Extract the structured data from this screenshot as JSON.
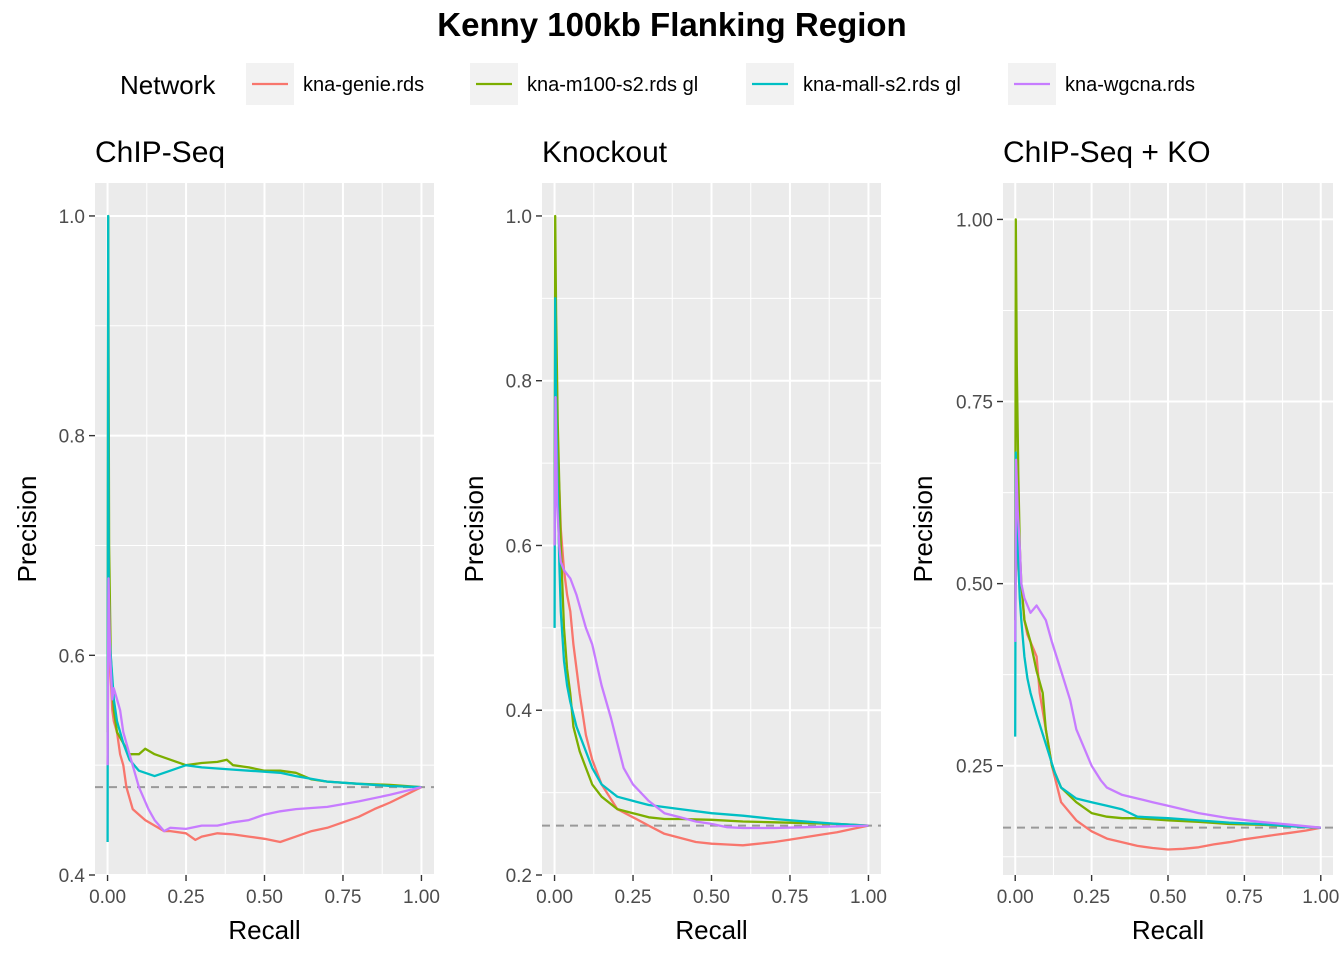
{
  "title": "Kenny 100kb Flanking Region",
  "legend": {
    "title": "Network",
    "position": "top",
    "entries": [
      {
        "label": "kna-genie.rds",
        "color": "#F8766D"
      },
      {
        "label": "kna-m100-s2.rds gl",
        "color": "#7CAE00"
      },
      {
        "label": "kna-mall-s2.rds gl",
        "color": "#00BFC4"
      },
      {
        "label": "kna-wgcna.rds",
        "color": "#C77CFF"
      }
    ]
  },
  "colors": {
    "panel_bg": "#EBEBEB",
    "grid": "#FFFFFF",
    "baseline": "#999999"
  },
  "chart_data": [
    {
      "type": "line",
      "title": "ChIP-Seq",
      "xlabel": "Recall",
      "ylabel": "Precision",
      "xlim": [
        -0.04,
        1.04
      ],
      "ylim": [
        0.4,
        1.03
      ],
      "xticks": [
        0,
        0.25,
        0.5,
        0.75,
        1
      ],
      "xtick_labels": [
        "0.00",
        "0.25",
        "0.50",
        "0.75",
        "1.00"
      ],
      "yticks": [
        0.4,
        0.6,
        0.8,
        1.0
      ],
      "ytick_labels": [
        "0.4",
        "0.6",
        "0.8",
        "1.0"
      ],
      "grid": true,
      "baseline": 0.48,
      "series": [
        {
          "name": "kna-genie.rds",
          "x": [
            0,
            0.003,
            0.006,
            0.01,
            0.015,
            0.02,
            0.03,
            0.04,
            0.05,
            0.06,
            0.08,
            0.1,
            0.12,
            0.15,
            0.18,
            0.2,
            0.25,
            0.28,
            0.3,
            0.35,
            0.4,
            0.45,
            0.5,
            0.55,
            0.6,
            0.65,
            0.7,
            0.75,
            0.8,
            0.85,
            0.9,
            0.95,
            1.0
          ],
          "y": [
            0.5,
            0.66,
            0.6,
            0.58,
            0.55,
            0.54,
            0.53,
            0.51,
            0.5,
            0.48,
            0.46,
            0.455,
            0.45,
            0.445,
            0.44,
            0.44,
            0.438,
            0.432,
            0.435,
            0.438,
            0.437,
            0.435,
            0.433,
            0.43,
            0.435,
            0.44,
            0.443,
            0.448,
            0.453,
            0.46,
            0.466,
            0.473,
            0.48
          ]
        },
        {
          "name": "kna-m100-s2.rds gl",
          "x": [
            0,
            0.002,
            0.005,
            0.01,
            0.02,
            0.03,
            0.05,
            0.07,
            0.1,
            0.12,
            0.15,
            0.2,
            0.25,
            0.3,
            0.35,
            0.38,
            0.4,
            0.45,
            0.5,
            0.55,
            0.6,
            0.65,
            0.7,
            0.8,
            0.9,
            1.0
          ],
          "y": [
            0.53,
            1.0,
            0.7,
            0.6,
            0.55,
            0.53,
            0.52,
            0.51,
            0.51,
            0.515,
            0.51,
            0.505,
            0.5,
            0.502,
            0.503,
            0.505,
            0.5,
            0.498,
            0.495,
            0.495,
            0.493,
            0.487,
            0.485,
            0.483,
            0.482,
            0.48
          ]
        },
        {
          "name": "kna-mall-s2.rds gl",
          "x": [
            0,
            0.002,
            0.003,
            0.004,
            0.006,
            0.01,
            0.015,
            0.02,
            0.03,
            0.05,
            0.07,
            0.1,
            0.15,
            0.2,
            0.25,
            0.3,
            0.35,
            0.4,
            0.45,
            0.5,
            0.55,
            0.6,
            0.7,
            0.8,
            0.9,
            1.0
          ],
          "y": [
            0.43,
            1.0,
            0.75,
            0.65,
            0.62,
            0.6,
            0.58,
            0.56,
            0.54,
            0.52,
            0.505,
            0.495,
            0.49,
            0.495,
            0.5,
            0.498,
            0.497,
            0.496,
            0.495,
            0.494,
            0.493,
            0.49,
            0.485,
            0.483,
            0.481,
            0.48
          ]
        },
        {
          "name": "kna-wgcna.rds",
          "x": [
            0,
            0.003,
            0.008,
            0.015,
            0.02,
            0.03,
            0.04,
            0.05,
            0.07,
            0.1,
            0.13,
            0.15,
            0.18,
            0.2,
            0.25,
            0.3,
            0.35,
            0.4,
            0.45,
            0.5,
            0.55,
            0.6,
            0.7,
            0.8,
            0.9,
            1.0
          ],
          "y": [
            0.5,
            0.67,
            0.6,
            0.56,
            0.57,
            0.56,
            0.55,
            0.53,
            0.51,
            0.48,
            0.46,
            0.45,
            0.44,
            0.443,
            0.442,
            0.445,
            0.445,
            0.448,
            0.45,
            0.455,
            0.458,
            0.46,
            0.462,
            0.467,
            0.473,
            0.48
          ]
        }
      ]
    },
    {
      "type": "line",
      "title": "Knockout",
      "xlabel": "Recall",
      "ylabel": "Precision",
      "xlim": [
        -0.04,
        1.04
      ],
      "ylim": [
        0.2,
        1.04
      ],
      "xticks": [
        0,
        0.25,
        0.5,
        0.75,
        1
      ],
      "xtick_labels": [
        "0.00",
        "0.25",
        "0.50",
        "0.75",
        "1.00"
      ],
      "yticks": [
        0.2,
        0.4,
        0.6,
        0.8,
        1.0
      ],
      "ytick_labels": [
        "0.2",
        "0.4",
        "0.6",
        "0.8",
        "1.0"
      ],
      "grid": true,
      "baseline": 0.26,
      "series": [
        {
          "name": "kna-genie.rds",
          "x": [
            0,
            0.003,
            0.006,
            0.01,
            0.015,
            0.02,
            0.03,
            0.04,
            0.05,
            0.06,
            0.08,
            0.1,
            0.12,
            0.15,
            0.2,
            0.25,
            0.3,
            0.35,
            0.4,
            0.45,
            0.5,
            0.55,
            0.6,
            0.65,
            0.7,
            0.75,
            0.8,
            0.85,
            0.9,
            0.95,
            1.0
          ],
          "y": [
            0.6,
            0.78,
            0.74,
            0.7,
            0.67,
            0.62,
            0.57,
            0.54,
            0.52,
            0.48,
            0.42,
            0.37,
            0.34,
            0.31,
            0.28,
            0.27,
            0.26,
            0.25,
            0.245,
            0.24,
            0.238,
            0.237,
            0.236,
            0.238,
            0.24,
            0.243,
            0.246,
            0.249,
            0.252,
            0.256,
            0.26
          ]
        },
        {
          "name": "kna-m100-s2.rds gl",
          "x": [
            0,
            0.002,
            0.005,
            0.01,
            0.02,
            0.03,
            0.04,
            0.05,
            0.06,
            0.08,
            0.1,
            0.12,
            0.15,
            0.2,
            0.25,
            0.3,
            0.35,
            0.4,
            0.5,
            0.6,
            0.7,
            0.8,
            0.9,
            1.0
          ],
          "y": [
            0.6,
            1.0,
            0.88,
            0.75,
            0.6,
            0.5,
            0.45,
            0.42,
            0.38,
            0.35,
            0.33,
            0.31,
            0.295,
            0.28,
            0.275,
            0.27,
            0.268,
            0.268,
            0.267,
            0.265,
            0.264,
            0.263,
            0.262,
            0.26
          ]
        },
        {
          "name": "kna-mall-s2.rds gl",
          "x": [
            0,
            0.002,
            0.004,
            0.008,
            0.015,
            0.02,
            0.03,
            0.04,
            0.05,
            0.07,
            0.1,
            0.12,
            0.15,
            0.2,
            0.25,
            0.3,
            0.4,
            0.5,
            0.6,
            0.7,
            0.8,
            0.9,
            1.0
          ],
          "y": [
            0.5,
            0.9,
            0.8,
            0.7,
            0.58,
            0.52,
            0.46,
            0.43,
            0.41,
            0.38,
            0.35,
            0.33,
            0.31,
            0.295,
            0.29,
            0.285,
            0.28,
            0.275,
            0.272,
            0.268,
            0.265,
            0.262,
            0.26
          ]
        },
        {
          "name": "kna-wgcna.rds",
          "x": [
            0,
            0.003,
            0.008,
            0.015,
            0.02,
            0.03,
            0.05,
            0.07,
            0.1,
            0.12,
            0.15,
            0.18,
            0.2,
            0.22,
            0.25,
            0.3,
            0.35,
            0.4,
            0.45,
            0.5,
            0.55,
            0.6,
            0.7,
            0.8,
            0.9,
            1.0
          ],
          "y": [
            0.6,
            0.78,
            0.65,
            0.6,
            0.58,
            0.57,
            0.56,
            0.54,
            0.5,
            0.48,
            0.43,
            0.39,
            0.36,
            0.33,
            0.31,
            0.29,
            0.275,
            0.27,
            0.265,
            0.262,
            0.258,
            0.257,
            0.257,
            0.258,
            0.259,
            0.26
          ]
        }
      ]
    },
    {
      "type": "line",
      "title": "ChIP-Seq + KO",
      "xlabel": "Recall",
      "ylabel": "Precision",
      "xlim": [
        -0.04,
        1.04
      ],
      "ylim": [
        0.1,
        1.05
      ],
      "xticks": [
        0,
        0.25,
        0.5,
        0.75,
        1
      ],
      "xtick_labels": [
        "0.00",
        "0.25",
        "0.50",
        "0.75",
        "1.00"
      ],
      "yticks": [
        0.25,
        0.5,
        0.75,
        1.0
      ],
      "ytick_labels": [
        "0.25",
        "0.50",
        "0.75",
        "1.00"
      ],
      "grid": true,
      "baseline": 0.165,
      "series": [
        {
          "name": "kna-genie.rds",
          "x": [
            0,
            0.004,
            0.008,
            0.01,
            0.015,
            0.02,
            0.03,
            0.04,
            0.05,
            0.06,
            0.07,
            0.08,
            0.1,
            0.12,
            0.15,
            0.2,
            0.25,
            0.3,
            0.35,
            0.4,
            0.45,
            0.5,
            0.55,
            0.6,
            0.65,
            0.7,
            0.75,
            0.8,
            0.85,
            0.9,
            0.95,
            1.0
          ],
          "y": [
            0.45,
            0.6,
            0.55,
            0.52,
            0.5,
            0.5,
            0.45,
            0.43,
            0.42,
            0.41,
            0.4,
            0.35,
            0.3,
            0.25,
            0.2,
            0.175,
            0.16,
            0.15,
            0.145,
            0.14,
            0.137,
            0.135,
            0.136,
            0.138,
            0.142,
            0.145,
            0.149,
            0.152,
            0.155,
            0.158,
            0.161,
            0.165
          ]
        },
        {
          "name": "kna-m100-s2.rds gl",
          "x": [
            0,
            0.002,
            0.005,
            0.01,
            0.015,
            0.02,
            0.03,
            0.05,
            0.07,
            0.09,
            0.1,
            0.12,
            0.15,
            0.2,
            0.25,
            0.3,
            0.35,
            0.4,
            0.5,
            0.6,
            0.7,
            0.8,
            0.9,
            1.0
          ],
          "y": [
            0.45,
            1.0,
            0.8,
            0.65,
            0.55,
            0.5,
            0.45,
            0.42,
            0.38,
            0.35,
            0.3,
            0.25,
            0.22,
            0.2,
            0.185,
            0.18,
            0.178,
            0.178,
            0.175,
            0.173,
            0.17,
            0.169,
            0.167,
            0.165
          ]
        },
        {
          "name": "kna-mall-s2.rds gl",
          "x": [
            0,
            0.002,
            0.004,
            0.008,
            0.015,
            0.02,
            0.03,
            0.04,
            0.05,
            0.07,
            0.1,
            0.13,
            0.15,
            0.2,
            0.25,
            0.3,
            0.35,
            0.4,
            0.5,
            0.6,
            0.7,
            0.8,
            0.9,
            1.0
          ],
          "y": [
            0.29,
            0.68,
            0.6,
            0.55,
            0.48,
            0.45,
            0.4,
            0.37,
            0.35,
            0.32,
            0.28,
            0.24,
            0.22,
            0.205,
            0.2,
            0.195,
            0.19,
            0.18,
            0.178,
            0.175,
            0.172,
            0.17,
            0.167,
            0.165
          ]
        },
        {
          "name": "kna-wgcna.rds",
          "x": [
            0,
            0.003,
            0.008,
            0.015,
            0.02,
            0.03,
            0.05,
            0.07,
            0.1,
            0.12,
            0.15,
            0.18,
            0.2,
            0.25,
            0.28,
            0.3,
            0.35,
            0.4,
            0.45,
            0.5,
            0.55,
            0.6,
            0.7,
            0.8,
            0.9,
            1.0
          ],
          "y": [
            0.42,
            0.67,
            0.6,
            0.55,
            0.5,
            0.48,
            0.46,
            0.47,
            0.45,
            0.42,
            0.38,
            0.34,
            0.3,
            0.25,
            0.23,
            0.22,
            0.21,
            0.205,
            0.2,
            0.195,
            0.19,
            0.185,
            0.178,
            0.173,
            0.169,
            0.165
          ]
        }
      ]
    }
  ]
}
